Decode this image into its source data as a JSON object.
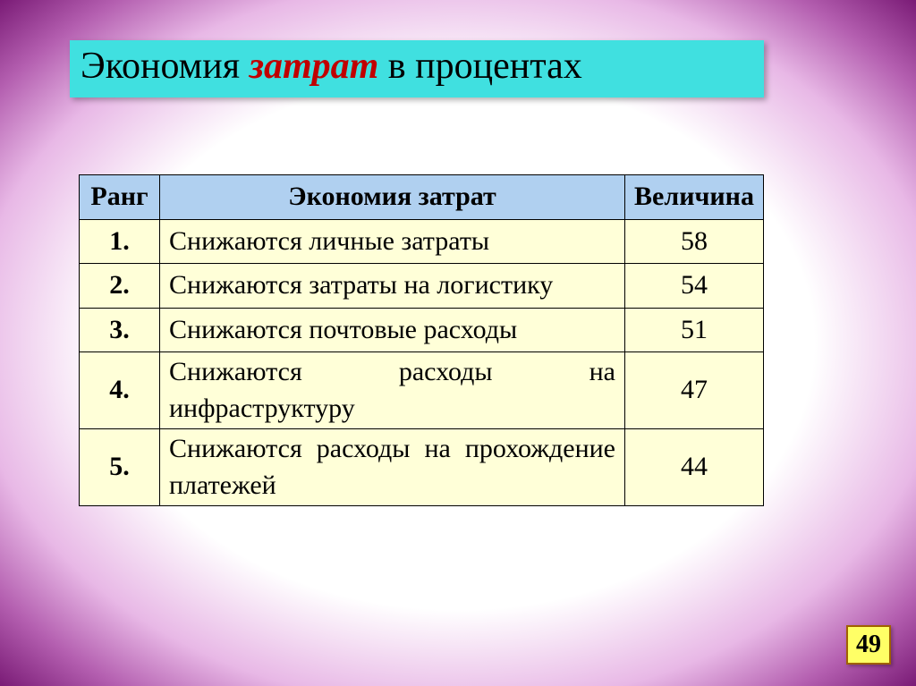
{
  "colors": {
    "title_bg": "#40e0e0",
    "title_text_normal": "#000000",
    "title_text_accent": "#c00000",
    "header_bg": "#b0d0f0",
    "header_text": "#000000",
    "cell_bg": "#ffffd8",
    "cell_text": "#000000",
    "border": "#000000",
    "page_num_bg": "#ffff66",
    "page_num_border": "#a06000",
    "page_num_text": "#000000"
  },
  "title": {
    "part1": "Экономия ",
    "part2": "затрат",
    "part3": " в процентах"
  },
  "table": {
    "headers": {
      "rank": "Ранг",
      "desc": "Экономия затрат",
      "value": "Величина"
    },
    "rows": [
      {
        "rank": "1.",
        "desc": "Снижаются личные затраты",
        "value": "58"
      },
      {
        "rank": "2.",
        "desc": "Снижаются затраты на логистику",
        "value": "54"
      },
      {
        "rank": "3.",
        "desc": "Снижаются почтовые расходы",
        "value": "51"
      },
      {
        "rank": "4.",
        "desc": "Снижаются расходы на инфраструктуру",
        "value": "47"
      },
      {
        "rank": "5.",
        "desc": "Снижаются расходы на прохождение платежей",
        "value": "44"
      }
    ]
  },
  "page_number": "49"
}
